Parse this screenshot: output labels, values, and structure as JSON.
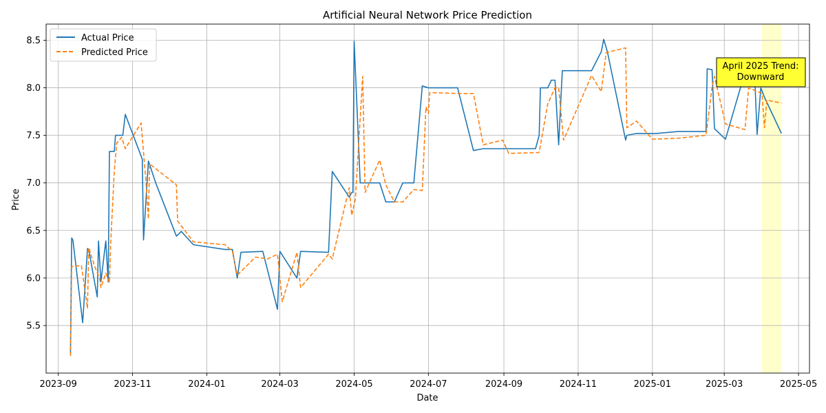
{
  "chart_data": {
    "type": "line",
    "title": "Artificial Neural Network Price Prediction",
    "xlabel": "Date",
    "ylabel": "Price",
    "xlim": [
      "2023-08-22",
      "2025-05-10"
    ],
    "ylim": [
      5.0,
      8.67
    ],
    "x_ticks": [
      {
        "date": "2023-09-01",
        "label": "2023-09"
      },
      {
        "date": "2023-11-01",
        "label": "2023-11"
      },
      {
        "date": "2024-01-01",
        "label": "2024-01"
      },
      {
        "date": "2024-03-01",
        "label": "2024-03"
      },
      {
        "date": "2024-05-01",
        "label": "2024-05"
      },
      {
        "date": "2024-07-01",
        "label": "2024-07"
      },
      {
        "date": "2024-09-01",
        "label": "2024-09"
      },
      {
        "date": "2024-11-01",
        "label": "2024-11"
      },
      {
        "date": "2025-01-01",
        "label": "2025-01"
      },
      {
        "date": "2025-03-01",
        "label": "2025-03"
      },
      {
        "date": "2025-05-01",
        "label": "2025-05"
      }
    ],
    "y_ticks": [
      5.5,
      6.0,
      6.5,
      7.0,
      7.5,
      8.0,
      8.5
    ],
    "grid": true,
    "legend_position": "top-left",
    "highlight_range": {
      "start": "2025-04-01",
      "end": "2025-04-17",
      "color": "#ffffcc"
    },
    "annotation": {
      "text_lines": [
        "April 2025 Trend:",
        "Downward"
      ],
      "x": "2025-04-01",
      "y": 8.1,
      "box_color": "#ffff33"
    },
    "series": [
      {
        "name": "Actual Price",
        "color": "#1f77b4",
        "style": "solid",
        "points": [
          [
            "2023-09-11",
            5.2
          ],
          [
            "2023-09-12",
            6.42
          ],
          [
            "2023-09-13",
            6.4
          ],
          [
            "2023-09-21",
            5.53
          ],
          [
            "2023-09-25",
            6.31
          ],
          [
            "2023-09-26",
            6.3
          ],
          [
            "2023-10-03",
            5.8
          ],
          [
            "2023-10-04",
            6.39
          ],
          [
            "2023-10-06",
            5.96
          ],
          [
            "2023-10-10",
            6.39
          ],
          [
            "2023-10-12",
            5.96
          ],
          [
            "2023-10-13",
            7.33
          ],
          [
            "2023-10-17",
            7.33
          ],
          [
            "2023-10-18",
            7.5
          ],
          [
            "2023-10-24",
            7.5
          ],
          [
            "2023-10-26",
            7.72
          ],
          [
            "2023-11-09",
            7.25
          ],
          [
            "2023-11-10",
            6.4
          ],
          [
            "2023-11-14",
            7.23
          ],
          [
            "2023-11-20",
            7.0
          ],
          [
            "2023-12-07",
            6.44
          ],
          [
            "2023-12-11",
            6.49
          ],
          [
            "2023-12-21",
            6.35
          ],
          [
            "2024-01-16",
            6.3
          ],
          [
            "2024-01-22",
            6.3
          ],
          [
            "2024-01-26",
            6.0
          ],
          [
            "2024-01-29",
            6.27
          ],
          [
            "2024-02-16",
            6.28
          ],
          [
            "2024-02-28",
            5.67
          ],
          [
            "2024-03-01",
            6.28
          ],
          [
            "2024-03-15",
            6.0
          ],
          [
            "2024-03-18",
            6.28
          ],
          [
            "2024-04-10",
            6.27
          ],
          [
            "2024-04-13",
            7.12
          ],
          [
            "2024-04-27",
            6.85
          ],
          [
            "2024-04-29",
            6.9
          ],
          [
            "2024-04-30",
            6.9
          ],
          [
            "2024-05-01",
            8.49
          ],
          [
            "2024-05-06",
            7.0
          ],
          [
            "2024-05-22",
            7.0
          ],
          [
            "2024-05-27",
            6.8
          ],
          [
            "2024-06-03",
            6.8
          ],
          [
            "2024-06-10",
            7.0
          ],
          [
            "2024-06-19",
            7.0
          ],
          [
            "2024-06-26",
            8.02
          ],
          [
            "2024-07-01",
            8.0
          ],
          [
            "2024-07-25",
            8.0
          ],
          [
            "2024-08-07",
            7.34
          ],
          [
            "2024-08-15",
            7.36
          ],
          [
            "2024-09-01",
            7.36
          ],
          [
            "2024-09-27",
            7.36
          ],
          [
            "2024-09-30",
            7.5
          ],
          [
            "2024-10-01",
            8.0
          ],
          [
            "2024-10-07",
            8.0
          ],
          [
            "2024-10-10",
            8.08
          ],
          [
            "2024-10-13",
            8.08
          ],
          [
            "2024-10-16",
            7.4
          ],
          [
            "2024-10-19",
            8.18
          ],
          [
            "2024-11-12",
            8.18
          ],
          [
            "2024-11-20",
            8.38
          ],
          [
            "2024-11-22",
            8.51
          ],
          [
            "2024-11-25",
            8.38
          ],
          [
            "2024-12-10",
            7.45
          ],
          [
            "2024-12-11",
            7.5
          ],
          [
            "2024-12-19",
            7.52
          ],
          [
            "2025-01-04",
            7.52
          ],
          [
            "2025-01-22",
            7.54
          ],
          [
            "2025-02-14",
            7.54
          ],
          [
            "2025-02-15",
            8.2
          ],
          [
            "2025-02-19",
            8.19
          ],
          [
            "2025-02-21",
            7.57
          ],
          [
            "2025-03-02",
            7.46
          ],
          [
            "2025-03-17",
            8.12
          ],
          [
            "2025-03-26",
            8.12
          ],
          [
            "2025-03-28",
            7.51
          ],
          [
            "2025-03-31",
            8.0
          ],
          [
            "2025-04-03",
            7.9
          ],
          [
            "2025-04-17",
            7.52
          ]
        ]
      },
      {
        "name": "Predicted Price",
        "color": "#ff7f0e",
        "style": "dashed",
        "points": [
          [
            "2023-09-11",
            5.18
          ],
          [
            "2023-09-12",
            6.12
          ],
          [
            "2023-09-20",
            6.13
          ],
          [
            "2023-09-25",
            5.68
          ],
          [
            "2023-09-26",
            6.32
          ],
          [
            "2023-10-01",
            6.12
          ],
          [
            "2023-10-05",
            6.0
          ],
          [
            "2023-10-06",
            5.9
          ],
          [
            "2023-10-10",
            6.05
          ],
          [
            "2023-10-13",
            5.95
          ],
          [
            "2023-10-14",
            6.35
          ],
          [
            "2023-10-17",
            7.12
          ],
          [
            "2023-10-19",
            7.42
          ],
          [
            "2023-10-23",
            7.48
          ],
          [
            "2023-10-26",
            7.36
          ],
          [
            "2023-11-08",
            7.63
          ],
          [
            "2023-11-12",
            7.02
          ],
          [
            "2023-11-14",
            6.62
          ],
          [
            "2023-11-15",
            7.2
          ],
          [
            "2023-12-07",
            6.98
          ],
          [
            "2023-12-08",
            6.6
          ],
          [
            "2023-12-21",
            6.38
          ],
          [
            "2024-01-16",
            6.35
          ],
          [
            "2024-01-22",
            6.28
          ],
          [
            "2024-01-26",
            6.03
          ],
          [
            "2024-02-10",
            6.22
          ],
          [
            "2024-02-20",
            6.2
          ],
          [
            "2024-02-28",
            6.25
          ],
          [
            "2024-03-03",
            5.75
          ],
          [
            "2024-03-15",
            6.27
          ],
          [
            "2024-03-18",
            5.9
          ],
          [
            "2024-04-10",
            6.25
          ],
          [
            "2024-04-13",
            6.2
          ],
          [
            "2024-04-27",
            6.95
          ],
          [
            "2024-04-29",
            6.66
          ],
          [
            "2024-05-02",
            6.83
          ],
          [
            "2024-05-08",
            8.12
          ],
          [
            "2024-05-10",
            6.9
          ],
          [
            "2024-05-22",
            7.24
          ],
          [
            "2024-05-27",
            6.98
          ],
          [
            "2024-06-03",
            6.8
          ],
          [
            "2024-06-10",
            6.8
          ],
          [
            "2024-06-19",
            6.93
          ],
          [
            "2024-06-26",
            6.92
          ],
          [
            "2024-06-29",
            7.8
          ],
          [
            "2024-07-01",
            7.73
          ],
          [
            "2024-07-02",
            7.95
          ],
          [
            "2024-07-25",
            7.94
          ],
          [
            "2024-08-07",
            7.94
          ],
          [
            "2024-08-15",
            7.4
          ],
          [
            "2024-08-31",
            7.45
          ],
          [
            "2024-09-05",
            7.31
          ],
          [
            "2024-09-30",
            7.32
          ],
          [
            "2024-10-07",
            7.83
          ],
          [
            "2024-10-13",
            8.0
          ],
          [
            "2024-10-16",
            8.0
          ],
          [
            "2024-10-20",
            7.45
          ],
          [
            "2024-11-12",
            8.13
          ],
          [
            "2024-11-20",
            7.96
          ],
          [
            "2024-11-24",
            8.37
          ],
          [
            "2024-12-10",
            8.42
          ],
          [
            "2024-12-11",
            7.58
          ],
          [
            "2024-12-19",
            7.65
          ],
          [
            "2025-01-01",
            7.46
          ],
          [
            "2025-01-22",
            7.47
          ],
          [
            "2025-02-14",
            7.5
          ],
          [
            "2025-02-19",
            8.01
          ],
          [
            "2025-02-21",
            8.12
          ],
          [
            "2025-03-02",
            7.62
          ],
          [
            "2025-03-18",
            7.56
          ],
          [
            "2025-03-21",
            8.0
          ],
          [
            "2025-04-01",
            7.94
          ],
          [
            "2025-04-03",
            7.58
          ],
          [
            "2025-04-05",
            7.87
          ],
          [
            "2025-04-17",
            7.84
          ]
        ]
      }
    ]
  }
}
